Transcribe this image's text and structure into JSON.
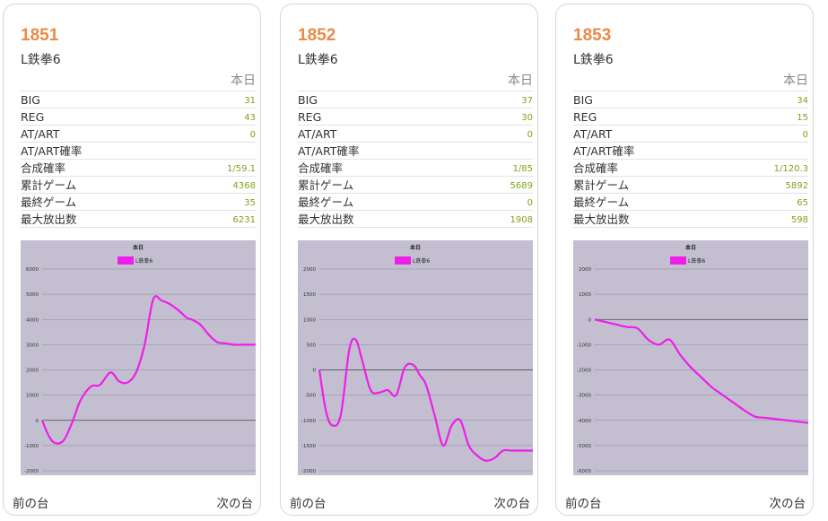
{
  "cards": [
    {
      "number": "1851",
      "model": "L鉄拳6",
      "header": "本日",
      "stats": [
        {
          "label": "BIG",
          "value": "31"
        },
        {
          "label": "REG",
          "value": "43"
        },
        {
          "label": "AT/ART",
          "value": "0"
        },
        {
          "label": "AT/ART確率",
          "value": ""
        },
        {
          "label": "合成確率",
          "value": "1/59.1"
        },
        {
          "label": "累計ゲーム",
          "value": "4368"
        },
        {
          "label": "最終ゲーム",
          "value": "35"
        },
        {
          "label": "最大放出数",
          "value": "6231"
        }
      ],
      "prev": "前の台",
      "next": "次の台"
    },
    {
      "number": "1852",
      "model": "L鉄拳6",
      "header": "本日",
      "stats": [
        {
          "label": "BIG",
          "value": "37"
        },
        {
          "label": "REG",
          "value": "30"
        },
        {
          "label": "AT/ART",
          "value": "0"
        },
        {
          "label": "AT/ART確率",
          "value": ""
        },
        {
          "label": "合成確率",
          "value": "1/85"
        },
        {
          "label": "累計ゲーム",
          "value": "5689"
        },
        {
          "label": "最終ゲーム",
          "value": "0"
        },
        {
          "label": "最大放出数",
          "value": "1908"
        }
      ],
      "prev": "前の台",
      "next": "次の台"
    },
    {
      "number": "1853",
      "model": "L鉄拳6",
      "header": "本日",
      "stats": [
        {
          "label": "BIG",
          "value": "34"
        },
        {
          "label": "REG",
          "value": "15"
        },
        {
          "label": "AT/ART",
          "value": "0"
        },
        {
          "label": "AT/ART確率",
          "value": ""
        },
        {
          "label": "合成確率",
          "value": "1/120.3"
        },
        {
          "label": "累計ゲーム",
          "value": "5892"
        },
        {
          "label": "最終ゲーム",
          "value": "65"
        },
        {
          "label": "最大放出数",
          "value": "598"
        }
      ],
      "prev": "前の台",
      "next": "次の台"
    }
  ],
  "colors": {
    "plot_bg": "#c3bfd1",
    "line": "#ee1fe8",
    "number": "#ea8a45",
    "value": "#7fa21a"
  },
  "chart_data": [
    {
      "type": "line",
      "title": "本日",
      "legend_position": "top",
      "series": [
        {
          "name": "L鉄拳6",
          "x": [
            0,
            0.03,
            0.06,
            0.1,
            0.14,
            0.18,
            0.23,
            0.27,
            0.32,
            0.36,
            0.4,
            0.44,
            0.48,
            0.52,
            0.56,
            0.6,
            0.64,
            0.68,
            0.7,
            0.74,
            0.78,
            0.82,
            0.86,
            0.9,
            0.94,
            0.97,
            1.0
          ],
          "y": [
            0,
            -600,
            -900,
            -800,
            -100,
            800,
            1350,
            1400,
            1900,
            1550,
            1500,
            1900,
            3000,
            4800,
            4750,
            4600,
            4350,
            4050,
            4000,
            3800,
            3400,
            3100,
            3050,
            3000,
            3000,
            3000,
            3000
          ]
        }
      ],
      "ylim": [
        -2000,
        6000
      ],
      "yticks": [
        "6000",
        "5000",
        "4000",
        "3000",
        "2000",
        "1000",
        "0",
        "-1000",
        "-2000"
      ],
      "grid": true
    },
    {
      "type": "line",
      "title": "本日",
      "legend_position": "top",
      "series": [
        {
          "name": "L鉄拳6",
          "x": [
            0,
            0.03,
            0.06,
            0.1,
            0.14,
            0.17,
            0.2,
            0.24,
            0.28,
            0.32,
            0.36,
            0.4,
            0.44,
            0.47,
            0.5,
            0.54,
            0.58,
            0.62,
            0.66,
            0.7,
            0.74,
            0.78,
            0.82,
            0.86,
            0.9,
            0.94,
            1.0
          ],
          "y": [
            0,
            -800,
            -1100,
            -900,
            400,
            600,
            200,
            -400,
            -450,
            -400,
            -500,
            50,
            100,
            -100,
            -300,
            -900,
            -1500,
            -1100,
            -1000,
            -1500,
            -1700,
            -1800,
            -1750,
            -1600,
            -1600,
            -1600,
            -1600
          ]
        }
      ],
      "ylim": [
        -2000,
        2000
      ],
      "yticks": [
        "2000",
        "1500",
        "1000",
        "500",
        "0",
        "-500",
        "-1000",
        "-1500",
        "-2000"
      ],
      "grid": true
    },
    {
      "type": "line",
      "title": "本日",
      "legend_position": "top",
      "series": [
        {
          "name": "L鉄拳6",
          "x": [
            0,
            0.05,
            0.1,
            0.15,
            0.2,
            0.25,
            0.3,
            0.35,
            0.4,
            0.45,
            0.5,
            0.55,
            0.6,
            0.65,
            0.7,
            0.75,
            0.8,
            0.85,
            0.9,
            0.95,
            1.0
          ],
          "y": [
            0,
            -100,
            -200,
            -300,
            -350,
            -800,
            -1000,
            -800,
            -1400,
            -1900,
            -2300,
            -2700,
            -3000,
            -3300,
            -3600,
            -3850,
            -3900,
            -3950,
            -4000,
            -4050,
            -4100
          ]
        }
      ],
      "ylim": [
        -5000,
        2000
      ],
      "yticks": [
        "2000",
        "1000",
        "0",
        "-1000",
        "-2000",
        "-3000",
        "-4000",
        "-5000",
        "-6000"
      ],
      "grid": true
    }
  ]
}
